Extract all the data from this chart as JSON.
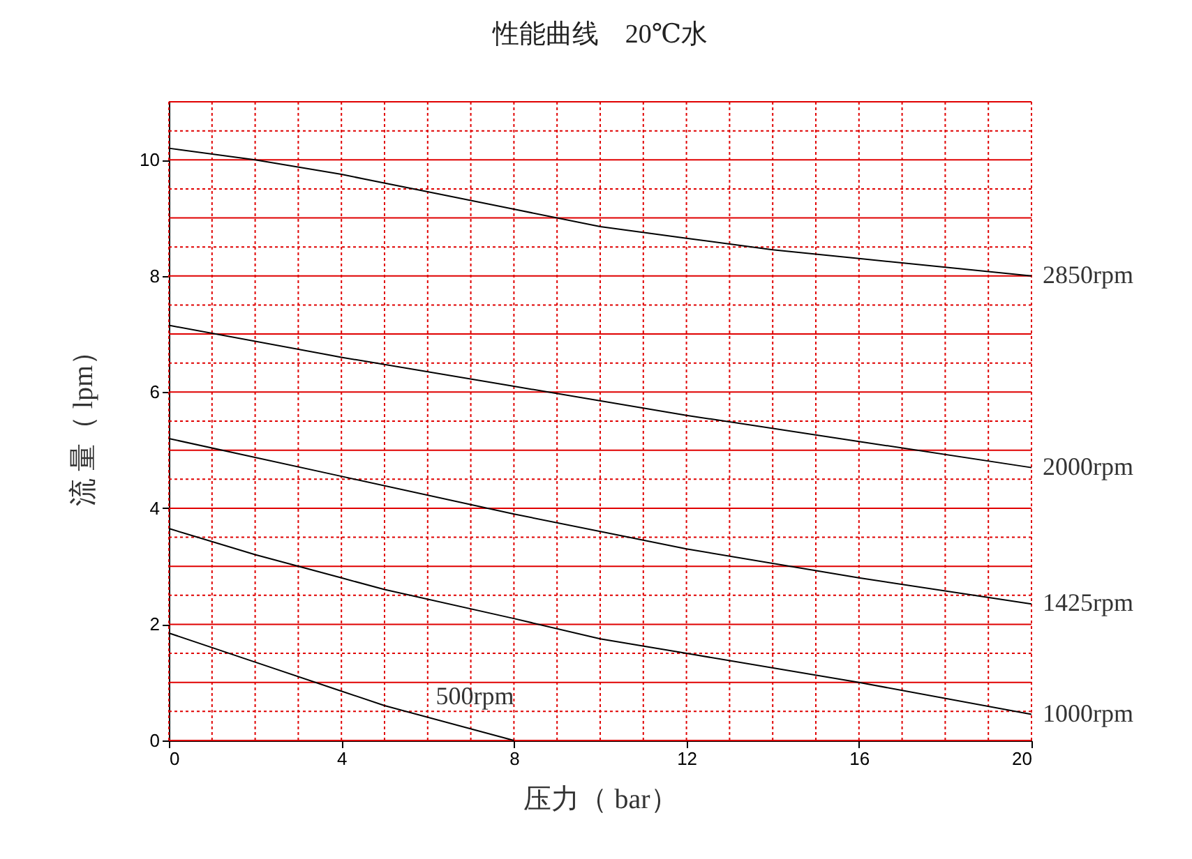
{
  "chart_data": {
    "type": "line",
    "title": "性能曲线　20℃水",
    "xlabel": "压力（ bar）",
    "ylabel": "流 量（ lpm）",
    "xlim": [
      0,
      20
    ],
    "xticks": [
      0,
      4,
      8,
      12,
      16,
      20
    ],
    "ylim": [
      0,
      11
    ],
    "yticks": [
      0,
      2,
      4,
      6,
      8,
      10
    ],
    "grid": true,
    "legend": false,
    "line_style": "solid",
    "marker": "none",
    "series": [
      {
        "name": "2850rpm",
        "color": "#000000",
        "x": [
          0,
          2,
          4,
          6,
          8,
          10,
          12,
          14,
          16,
          18,
          20
        ],
        "values": [
          10.2,
          10.0,
          9.75,
          9.45,
          9.15,
          8.85,
          8.65,
          8.45,
          8.3,
          8.15,
          8.0
        ]
      },
      {
        "name": "2000rpm",
        "color": "#000000",
        "x": [
          0,
          4,
          8,
          12,
          16,
          20
        ],
        "values": [
          7.15,
          6.6,
          6.1,
          5.6,
          5.15,
          4.7
        ]
      },
      {
        "name": "1425rpm",
        "color": "#000000",
        "x": [
          0,
          4,
          8,
          12,
          16,
          20
        ],
        "values": [
          5.2,
          4.55,
          3.9,
          3.3,
          2.8,
          2.35
        ]
      },
      {
        "name": "1000rpm",
        "color": "#000000",
        "x": [
          0,
          2,
          4,
          5,
          8,
          10,
          12,
          16,
          20
        ],
        "values": [
          3.65,
          3.2,
          2.8,
          2.6,
          2.1,
          1.75,
          1.5,
          1.0,
          0.45
        ]
      },
      {
        "name": "500rpm",
        "color": "#000000",
        "x": [
          0,
          2,
          4,
          5,
          8
        ],
        "values": [
          1.85,
          1.35,
          0.85,
          0.6,
          0
        ]
      }
    ]
  }
}
